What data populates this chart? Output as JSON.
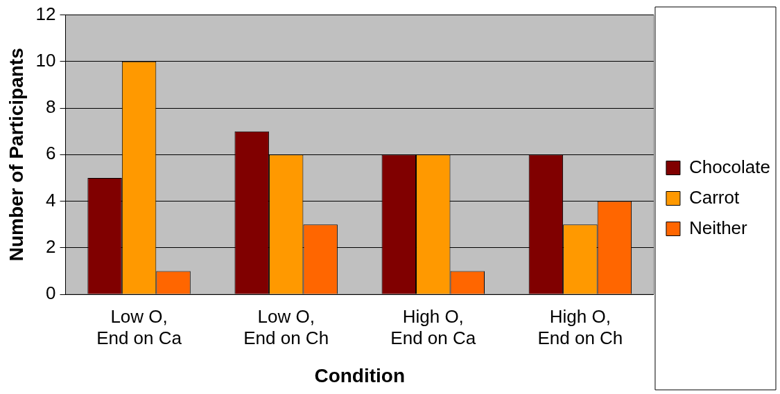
{
  "chart_data": {
    "type": "bar",
    "xlabel": "Condition",
    "ylabel": "Number of Participants",
    "categories": [
      "Low O,\nEnd on Ca",
      "Low O,\nEnd on Ch",
      "High O,\nEnd on Ca",
      "High O,\nEnd on Ch"
    ],
    "series": [
      {
        "name": "Chocolate",
        "color": "#800000",
        "values": [
          5,
          7,
          6,
          6
        ]
      },
      {
        "name": "Carrot",
        "color": "#ff9900",
        "values": [
          10,
          6,
          6,
          3
        ]
      },
      {
        "name": "Neither",
        "color": "#ff6600",
        "values": [
          1,
          3,
          1,
          4
        ]
      }
    ],
    "ylim": [
      0,
      12
    ],
    "yticks": [
      0,
      2,
      4,
      6,
      8,
      10,
      12
    ],
    "grid": "y",
    "legend": "right"
  }
}
